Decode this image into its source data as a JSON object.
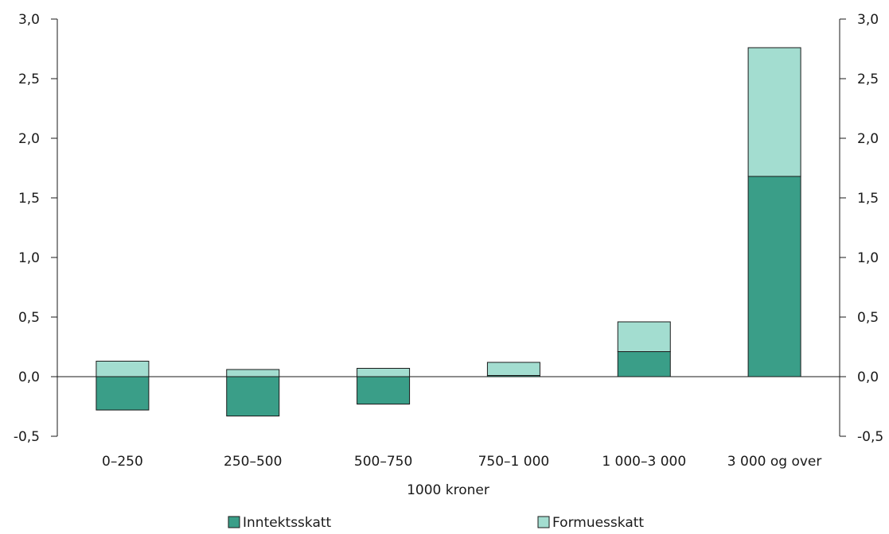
{
  "chart_data": {
    "type": "bar",
    "stacked": true,
    "categories": [
      "0–250",
      "250–500",
      "500–750",
      "750–1 000",
      "1 000–3 000",
      "3 000 og over"
    ],
    "series": [
      {
        "name": "Inntektsskatt",
        "values": [
          -0.28,
          -0.33,
          -0.23,
          0.01,
          0.21,
          1.68
        ]
      },
      {
        "name": "Formuesskatt",
        "values": [
          0.13,
          0.06,
          0.07,
          0.11,
          0.25,
          1.08
        ]
      }
    ],
    "xlabel": "1000 kroner",
    "ylim": [
      -0.5,
      3.0
    ],
    "yticks": [
      -0.5,
      0.0,
      0.5,
      1.0,
      1.5,
      2.0,
      2.5,
      3.0
    ],
    "ytick_labels": [
      "-0,5",
      "0,0",
      "0,5",
      "1,0",
      "1,5",
      "2,0",
      "2,5",
      "3,0"
    ],
    "dual_y_axis": true,
    "grid": false,
    "legend_position": "bottom",
    "colors": {
      "Inntektsskatt": "#3a9e88",
      "Formuesskatt": "#a3ddd0",
      "outline": "#1a1a1a"
    }
  }
}
